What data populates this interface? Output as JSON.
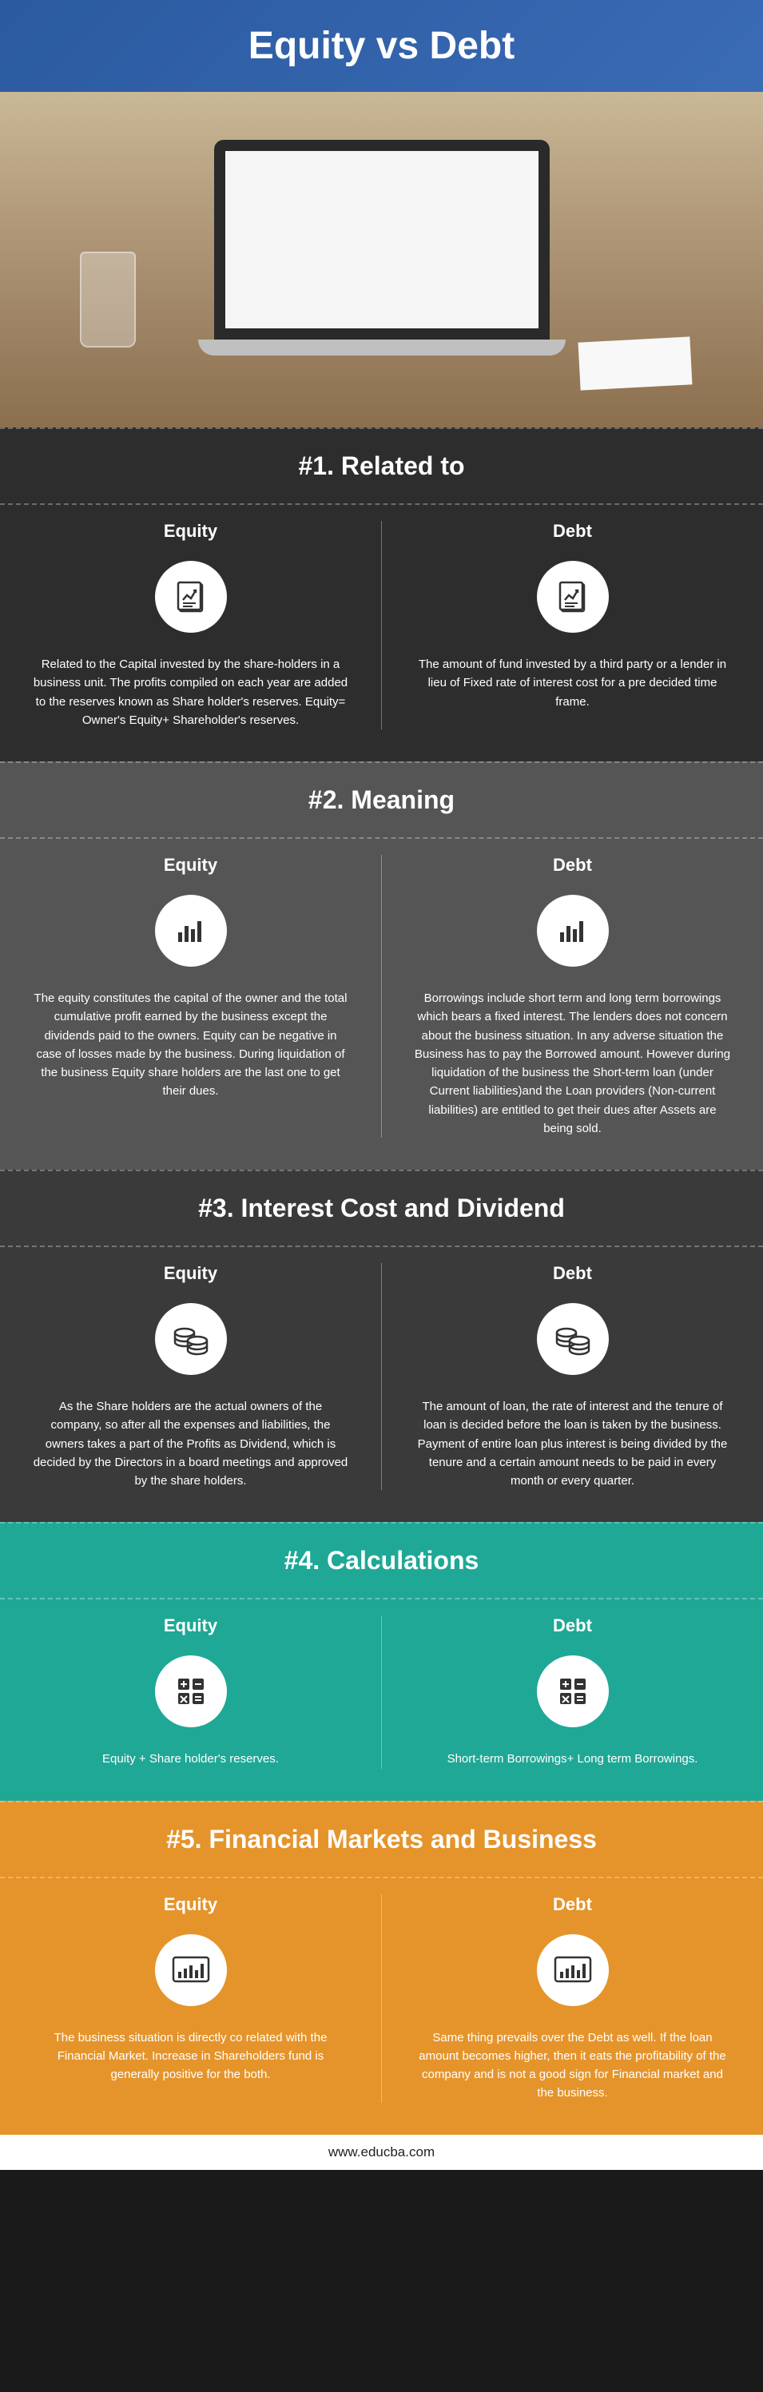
{
  "title": "Equity vs Debt",
  "footer": "www.educba.com",
  "sections": [
    {
      "id": 1,
      "bg": "#2d2d2d",
      "heading": "#1. Related to",
      "equity_label": "Equity",
      "debt_label": "Debt",
      "icon": "document",
      "equity_text": "Related to the Capital invested by the share-holders in a business unit. The profits compiled on each year are added to the reserves known as Share holder's reserves. Equity= Owner's Equity+ Shareholder's reserves.",
      "debt_text": "The amount of fund invested by a third party or a lender in lieu of Fixed rate of interest cost for a pre decided time frame."
    },
    {
      "id": 2,
      "bg": "#555555",
      "heading": "#2. Meaning",
      "equity_label": "Equity",
      "debt_label": "Debt",
      "icon": "bars",
      "equity_text": "The equity constitutes the capital of the owner and the total cumulative profit earned by the business except the dividends paid to the owners. Equity can be negative in case of losses made by the business. During liquidation of the business Equity share holders are the last one to get their dues.",
      "debt_text": "Borrowings include short term and long term borrowings which bears a fixed interest. The lenders does not concern about the business situation. In any adverse situation the Business has to pay the Borrowed amount. However during liquidation of the business the Short-term loan (under Current liabilities)and the Loan providers (Non-current liabilities) are entitled to get their dues after Assets are being sold."
    },
    {
      "id": 3,
      "bg": "#3a3a3a",
      "heading": "#3. Interest Cost and Dividend",
      "equity_label": "Equity",
      "debt_label": "Debt",
      "icon": "coins",
      "equity_text": "As the Share holders are the actual owners of the company, so after all the expenses and liabilities, the owners takes a part of the Profits as Dividend, which is decided by the Directors in a board meetings and approved by the share holders.",
      "debt_text": "The amount of loan, the rate of interest and the tenure of loan is decided before the loan is taken by the business. Payment of entire loan plus interest is being divided by the tenure and a certain amount needs to be paid in every month or every quarter."
    },
    {
      "id": 4,
      "bg": "#1fa896",
      "heading": "#4. Calculations",
      "equity_label": "Equity",
      "debt_label": "Debt",
      "icon": "calc",
      "equity_text": "Equity + Share holder's reserves.",
      "debt_text": "Short-term Borrowings+ Long term Borrowings."
    },
    {
      "id": 5,
      "bg": "#e5942b",
      "heading": "#5. Financial Markets and Business",
      "equity_label": "Equity",
      "debt_label": "Debt",
      "icon": "chart",
      "equity_text": "The business situation is directly co related with the Financial Market. Increase in Shareholders fund is generally positive for the both.",
      "debt_text": "Same thing prevails over the Debt as well. If the loan amount becomes higher, then it eats the profitability of the company and is not a good sign for Financial market and the business."
    }
  ],
  "icons": {
    "document": "doc-chart-icon",
    "bars": "bar-chart-icon",
    "coins": "coins-icon",
    "calc": "calculator-icon",
    "chart": "monitor-chart-icon"
  }
}
